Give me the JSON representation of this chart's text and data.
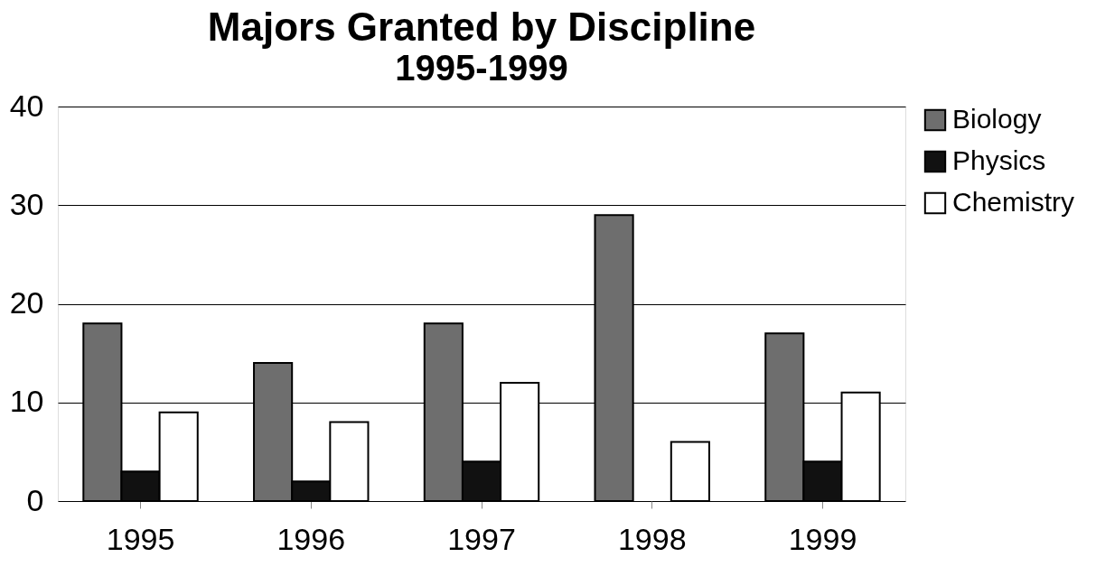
{
  "chart_data": {
    "type": "bar",
    "title": "Majors Granted by Discipline",
    "subtitle": "1995-1999",
    "categories": [
      "1995",
      "1996",
      "1997",
      "1998",
      "1999"
    ],
    "series": [
      {
        "name": "Biology",
        "color": "#6e6e6e",
        "values": [
          18,
          14,
          18,
          29,
          17
        ]
      },
      {
        "name": "Physics",
        "color": "#111111",
        "values": [
          3,
          2,
          4,
          null,
          4
        ]
      },
      {
        "name": "Chemistry",
        "color": "#ffffff",
        "values": [
          9,
          8,
          12,
          6,
          11
        ]
      }
    ],
    "ylim": [
      0,
      40
    ],
    "yticks": [
      0,
      10,
      20,
      30,
      40
    ],
    "grid": "y",
    "legend": "right"
  }
}
